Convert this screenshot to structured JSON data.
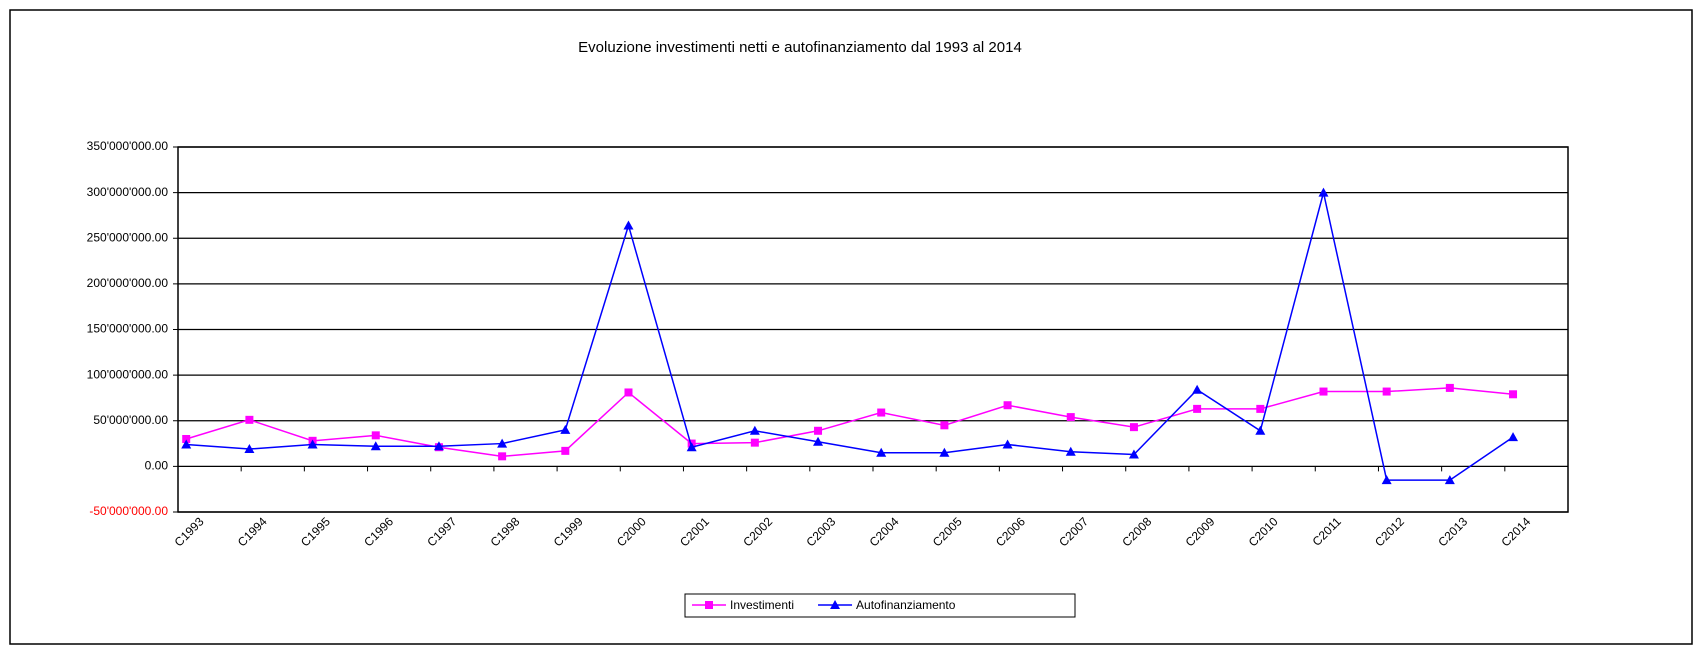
{
  "chart_data": {
    "type": "line",
    "title": "Evoluzione investimenti netti e autofinanziamento dal 1993 al 2014",
    "categories": [
      "C1993",
      "C1994",
      "C1995",
      "C1996",
      "C1997",
      "C1998",
      "C1999",
      "C2000",
      "C2001",
      "C2002",
      "C2003",
      "C2004",
      "C2005",
      "C2006",
      "C2007",
      "C2008",
      "C2009",
      "C2010",
      "C2011",
      "C2012",
      "C2013",
      "C2014"
    ],
    "series": [
      {
        "name": "Investimenti",
        "color": "#ff00ff",
        "marker": "square",
        "values": [
          30000000,
          51000000,
          28000000,
          34000000,
          21000000,
          11000000,
          17000000,
          81000000,
          25000000,
          26000000,
          39000000,
          59000000,
          45000000,
          67000000,
          54000000,
          43000000,
          63000000,
          63000000,
          82000000,
          82000000,
          86000000,
          79000000
        ]
      },
      {
        "name": "Autofinanziamento",
        "color": "#0000ff",
        "marker": "triangle",
        "values": [
          24000000,
          19000000,
          24000000,
          22000000,
          22000000,
          25000000,
          40000000,
          264000000,
          21000000,
          39000000,
          27000000,
          15000000,
          15000000,
          24000000,
          16000000,
          13000000,
          84000000,
          39000000,
          300000000,
          -15000000,
          -15000000,
          32000000
        ]
      }
    ],
    "ylim": [
      -50000000,
      350000000
    ],
    "yticks": [
      {
        "value": -50000000,
        "label": "-50'000'000.00"
      },
      {
        "value": 0,
        "label": "0.00"
      },
      {
        "value": 50000000,
        "label": "50'000'000.00"
      },
      {
        "value": 100000000,
        "label": "100'000'000.00"
      },
      {
        "value": 150000000,
        "label": "150'000'000.00"
      },
      {
        "value": 200000000,
        "label": "200'000'000.00"
      },
      {
        "value": 250000000,
        "label": "250'000'000.00"
      },
      {
        "value": 300000000,
        "label": "300'000'000.00"
      },
      {
        "value": 350000000,
        "label": "350'000'000.00"
      }
    ],
    "grid": true,
    "legend": "bottom"
  }
}
